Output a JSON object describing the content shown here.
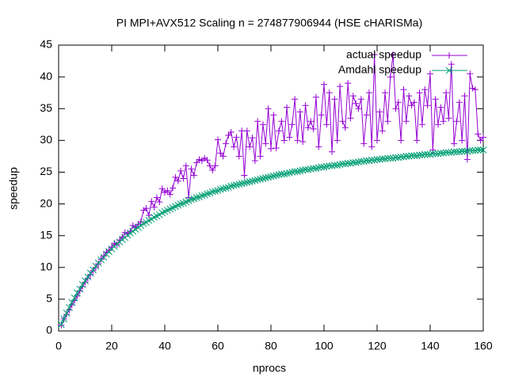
{
  "chart_data": {
    "type": "line",
    "title": "PI MPI+AVX512 Scaling n = 274877906944 (HSE cHARISMa)",
    "x_label": "nprocs",
    "y_label": "speedup",
    "xlim": [
      0,
      160
    ],
    "xticks": [
      0,
      20,
      40,
      60,
      80,
      100,
      120,
      140,
      160
    ],
    "ylim": [
      0,
      45
    ],
    "yticks": [
      0,
      5,
      10,
      15,
      20,
      25,
      30,
      35,
      40,
      45
    ],
    "grid": false,
    "legend": "top-right",
    "x": [
      1,
      2,
      3,
      4,
      5,
      6,
      7,
      8,
      9,
      10,
      11,
      12,
      13,
      14,
      15,
      16,
      17,
      18,
      19,
      20,
      21,
      22,
      23,
      24,
      25,
      26,
      27,
      28,
      29,
      30,
      31,
      32,
      33,
      34,
      35,
      36,
      37,
      38,
      39,
      40,
      41,
      42,
      43,
      44,
      45,
      46,
      47,
      48,
      49,
      50,
      51,
      52,
      53,
      54,
      55,
      56,
      57,
      58,
      59,
      60,
      61,
      62,
      63,
      64,
      65,
      66,
      67,
      68,
      69,
      70,
      71,
      72,
      73,
      74,
      75,
      76,
      77,
      78,
      79,
      80,
      81,
      82,
      83,
      84,
      85,
      86,
      87,
      88,
      89,
      90,
      91,
      92,
      93,
      94,
      95,
      96,
      97,
      98,
      99,
      100,
      101,
      102,
      103,
      104,
      105,
      106,
      107,
      108,
      109,
      110,
      111,
      112,
      113,
      114,
      115,
      116,
      117,
      118,
      119,
      120,
      121,
      122,
      123,
      124,
      125,
      126,
      127,
      128,
      129,
      130,
      131,
      132,
      133,
      134,
      135,
      136,
      137,
      138,
      139,
      140,
      141,
      142,
      143,
      144,
      145,
      146,
      147,
      148,
      149,
      150,
      151,
      152,
      153,
      154,
      155,
      156,
      157,
      158,
      159,
      160
    ],
    "series": [
      {
        "name": "actual speedup",
        "color": "#9400d3",
        "marker": "plus",
        "values": [
          0.9,
          1.9,
          2.6,
          3.3,
          4.1,
          4.8,
          5.5,
          6.3,
          7.0,
          7.7,
          8.3,
          8.9,
          9.5,
          10.0,
          10.6,
          11.3,
          11.8,
          12.4,
          12.7,
          13.2,
          13.8,
          13.6,
          14.3,
          14.8,
          15.5,
          15.3,
          15.7,
          16.6,
          16.3,
          16.8,
          17.2,
          19.0,
          19.3,
          18.2,
          20.4,
          19.5,
          21.0,
          20.3,
          22.4,
          21.8,
          22.1,
          21.5,
          22.5,
          24.2,
          23.6,
          25.2,
          24.0,
          26.0,
          21.0,
          25.5,
          24.5,
          26.5,
          27.0,
          26.8,
          27.2,
          26.9,
          26.0,
          25.3,
          26.0,
          30.1,
          28.0,
          27.5,
          29.5,
          30.8,
          31.3,
          29.0,
          30.5,
          27.5,
          31.5,
          24.5,
          31.5,
          29.0,
          30.4,
          26.8,
          33.0,
          27.5,
          32.5,
          29.5,
          35.0,
          28.7,
          34.0,
          28.8,
          31.5,
          33.0,
          30.0,
          35.2,
          30.5,
          32.5,
          36.5,
          30.0,
          34.5,
          29.8,
          35.5,
          32.0,
          33.0,
          31.8,
          36.8,
          29.0,
          34.0,
          38.8,
          32.5,
          37.5,
          28.2,
          36.5,
          30.0,
          38.5,
          33.0,
          32.0,
          39.0,
          33.5,
          37.0,
          35.8,
          35.0,
          36.5,
          29.5,
          34.0,
          37.5,
          29.0,
          43.5,
          30.0,
          34.5,
          31.5,
          37.5,
          33.0,
          40.0,
          43.5,
          35.0,
          36.0,
          30.0,
          38.0,
          33.0,
          37.0,
          35.5,
          36.0,
          30.0,
          37.5,
          32.5,
          38.0,
          35.5,
          40.5,
          28.5,
          36.5,
          32.5,
          35.2,
          33.0,
          37.5,
          33.5,
          42.0,
          29.5,
          33.0,
          36.0,
          30.0,
          37.0,
          27.0,
          40.5,
          38.2,
          38.0,
          31.0,
          30.0,
          30.5
        ]
      },
      {
        "name": "Amdahl speedup",
        "color": "#009e73",
        "marker": "cross",
        "values": [
          1.0,
          1.9,
          2.8,
          3.7,
          4.5,
          5.2,
          6.0,
          6.6,
          7.3,
          7.9,
          8.5,
          9.1,
          9.6,
          10.2,
          10.7,
          11.2,
          11.6,
          12.1,
          12.5,
          12.9,
          13.3,
          13.7,
          14.0,
          14.4,
          14.7,
          15.1,
          15.4,
          15.7,
          16.0,
          16.3,
          16.6,
          16.9,
          17.1,
          17.4,
          17.6,
          17.9,
          18.1,
          18.3,
          18.6,
          18.8,
          19.0,
          19.2,
          19.4,
          19.6,
          19.8,
          20.0,
          20.1,
          20.3,
          20.5,
          20.7,
          20.8,
          21.0,
          21.1,
          21.3,
          21.4,
          21.6,
          21.7,
          21.9,
          22.0,
          22.1,
          22.3,
          22.4,
          22.5,
          22.6,
          22.8,
          22.9,
          23.0,
          23.1,
          23.2,
          23.3,
          23.4,
          23.5,
          23.6,
          23.7,
          23.8,
          23.9,
          24.0,
          24.1,
          24.2,
          24.3,
          24.4,
          24.5,
          24.6,
          24.7,
          24.7,
          24.8,
          24.9,
          25.0,
          25.1,
          25.1,
          25.2,
          25.3,
          25.4,
          25.4,
          25.5,
          25.6,
          25.6,
          25.7,
          25.8,
          25.8,
          25.9,
          26.0,
          26.0,
          26.1,
          26.1,
          26.2,
          26.3,
          26.3,
          26.4,
          26.4,
          26.5,
          26.5,
          26.6,
          26.7,
          26.7,
          26.8,
          26.8,
          26.9,
          26.9,
          27.0,
          27.0,
          27.1,
          27.1,
          27.2,
          27.2,
          27.2,
          27.3,
          27.3,
          27.4,
          27.4,
          27.5,
          27.5,
          27.6,
          27.6,
          27.6,
          27.7,
          27.7,
          27.8,
          27.8,
          27.8,
          27.9,
          27.9,
          27.9,
          28.0,
          28.0,
          28.1,
          28.1,
          28.1,
          28.2,
          28.2,
          28.2,
          28.3,
          28.3,
          28.3,
          28.4,
          28.4,
          28.4,
          28.5,
          28.5,
          28.5
        ]
      }
    ]
  }
}
